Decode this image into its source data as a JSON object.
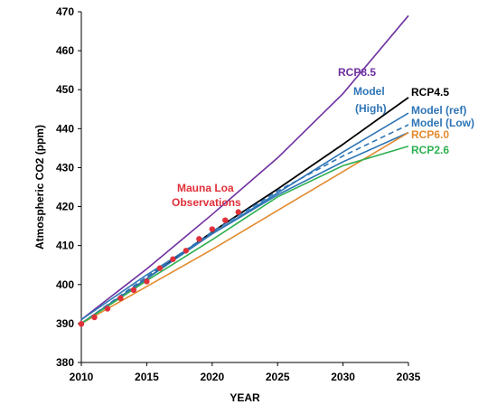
{
  "chart_data": {
    "type": "line",
    "title": "",
    "xlabel": "YEAR",
    "ylabel": "Atmospheric CO2 (ppm)",
    "xlim": [
      2010,
      2035
    ],
    "ylim": [
      380,
      470
    ],
    "xticks": [
      2010,
      2015,
      2020,
      2025,
      2030,
      2035
    ],
    "yticks": [
      380,
      390,
      400,
      410,
      420,
      430,
      440,
      450,
      460,
      470
    ],
    "grid": false,
    "legend": "none",
    "series": [
      {
        "name": "RCP8.5",
        "color": "#7030A0",
        "style": "solid",
        "x": [
          2010,
          2015,
          2020,
          2025,
          2030,
          2035
        ],
        "y": [
          391,
          404,
          418,
          432.5,
          449,
          469
        ]
      },
      {
        "name": "RCP4.5",
        "color": "#000000",
        "style": "solid",
        "x": [
          2010,
          2015,
          2020,
          2025,
          2030,
          2035
        ],
        "y": [
          390,
          401.5,
          413.5,
          424.5,
          436,
          448
        ]
      },
      {
        "name": "Model (High)",
        "color": "#2E75B6",
        "style": "solid",
        "x": [
          2010,
          2015,
          2020,
          2025,
          2030,
          2035
        ],
        "y": [
          391,
          402.5,
          413,
          423.5,
          434,
          444
        ]
      },
      {
        "name": "Model (ref)",
        "color": "#2E75B6",
        "style": "dashed",
        "x": [
          2010,
          2015,
          2020,
          2025,
          2030,
          2035
        ],
        "y": [
          390,
          402,
          413.5,
          424,
          433,
          441
        ]
      },
      {
        "name": "Model (Low)",
        "color": "#2E75B6",
        "style": "solid",
        "x": [
          2010,
          2015,
          2020,
          2025,
          2030,
          2035
        ],
        "y": [
          390,
          401.5,
          413,
          423,
          431.5,
          439
        ]
      },
      {
        "name": "RCP6.0",
        "color": "#E38A2E",
        "style": "solid",
        "x": [
          2010,
          2015,
          2020,
          2025,
          2030,
          2035
        ],
        "y": [
          390,
          399.5,
          409,
          419,
          429,
          439
        ]
      },
      {
        "name": "RCP2.6",
        "color": "#2EB050",
        "style": "solid",
        "x": [
          2010,
          2015,
          2020,
          2025,
          2030,
          2035
        ],
        "y": [
          390,
          401,
          411.5,
          422.5,
          430.5,
          435.5
        ]
      },
      {
        "name": "Mauna Loa Observations",
        "color": "#E0303A",
        "style": "markers",
        "x": [
          2010,
          2011,
          2012,
          2013,
          2014,
          2015,
          2016,
          2017,
          2018,
          2019,
          2020,
          2021,
          2022
        ],
        "y": [
          389.9,
          391.6,
          393.8,
          396.5,
          398.6,
          400.8,
          404.2,
          406.5,
          408.7,
          411.7,
          414.2,
          416.5,
          418.6
        ]
      }
    ],
    "annotations": [
      {
        "text": "RCP8.5",
        "color": "#7030A0"
      },
      {
        "text": "Model",
        "color": "#2E75B6"
      },
      {
        "text": "(High)",
        "color": "#2E75B6"
      },
      {
        "text": "RCP4.5",
        "color": "#000000"
      },
      {
        "text": "Model (ref)",
        "color": "#2E75B6"
      },
      {
        "text": "Model (Low)",
        "color": "#2E75B6"
      },
      {
        "text": "RCP6.0",
        "color": "#E38A2E"
      },
      {
        "text": "RCP2.6",
        "color": "#2EB050"
      },
      {
        "text": "Mauna Loa",
        "color": "#E0303A"
      },
      {
        "text": "Observations",
        "color": "#E0303A"
      }
    ]
  }
}
